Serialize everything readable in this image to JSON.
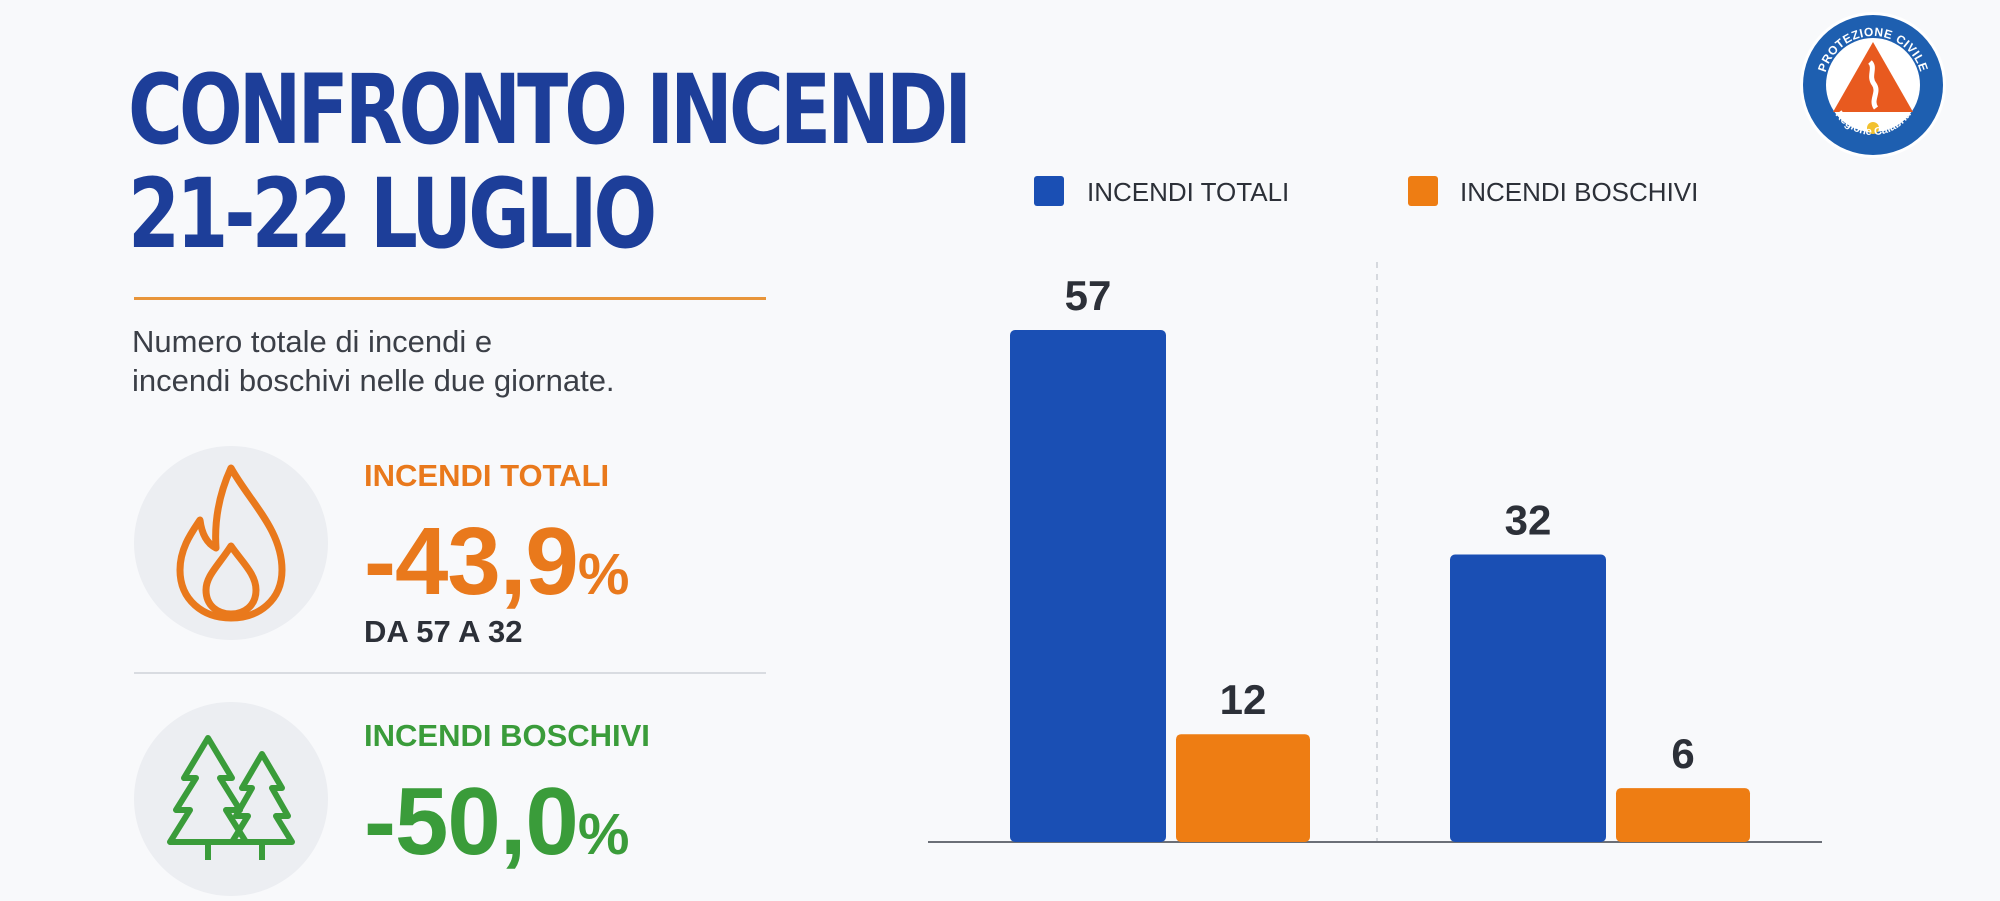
{
  "header": {
    "title_line1": "CONFRONTO INCENDI",
    "title_line2": "21-22 LUGLIO",
    "subtitle_line1": "Numero totale di incendi e",
    "subtitle_line2": "incendi boschivi nelle due giornate."
  },
  "stats": [
    {
      "label": "INCENDI TOTALI",
      "value": "-43,9",
      "unit": "%",
      "note": "DA 57 A 32",
      "color": "#e9791c",
      "icon": "flame-icon"
    },
    {
      "label": "INCENDI BOSCHIVI",
      "value": "-50,0",
      "unit": "%",
      "color": "#3a9c3a",
      "icon": "pine-trees-icon"
    }
  ],
  "logo": {
    "text_top": "PROTEZIONE CIVILE",
    "text_bottom": "Regione Calabria",
    "ring_color": "#1e5fb0",
    "triangle_color": "#e85a1f"
  },
  "chart_data": {
    "type": "bar",
    "categories": [
      "",
      ""
    ],
    "series": [
      {
        "name": "INCENDI TOTALI",
        "values": [
          57,
          32
        ],
        "color": "#1a4fb4"
      },
      {
        "name": "INCENDI BOSCHIVI",
        "values": [
          12,
          6
        ],
        "color": "#ee7d13"
      }
    ],
    "legend": "top",
    "grid": false,
    "ylim": [
      0,
      68
    ]
  }
}
